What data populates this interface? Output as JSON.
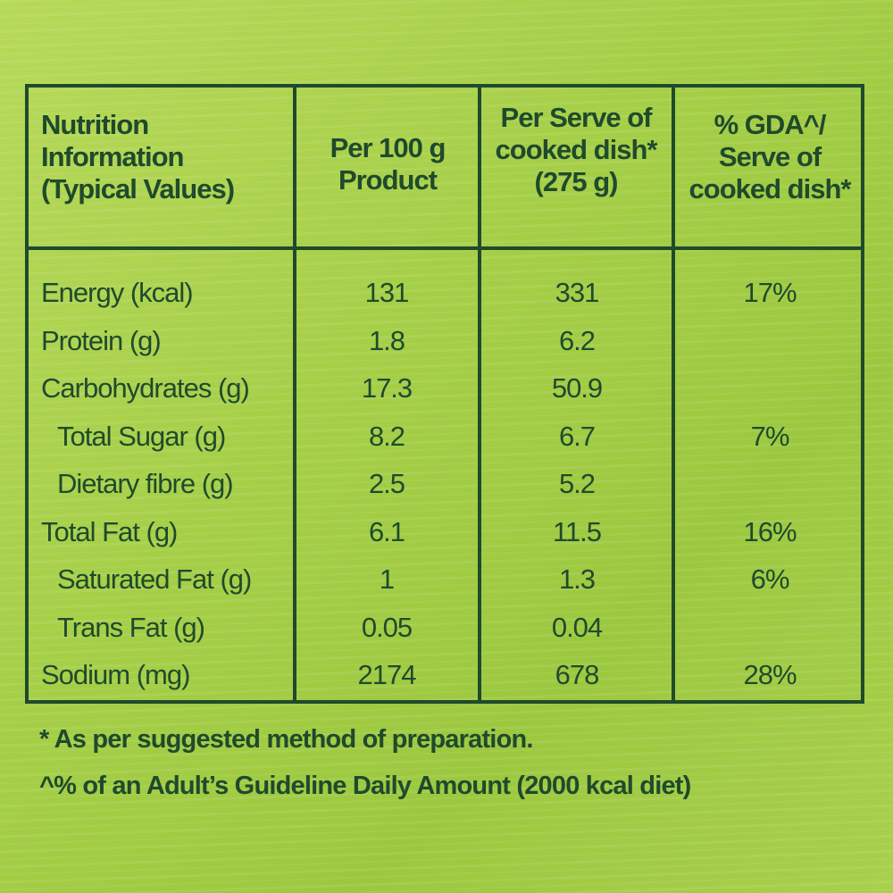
{
  "header": {
    "col0": [
      "Nutrition",
      "Information",
      "(Typical Values)"
    ],
    "col1": [
      "Per 100 g",
      "Product"
    ],
    "col2": [
      "Per Serve of",
      "cooked dish*",
      "(275 g)"
    ],
    "col3": [
      "% GDA^/",
      "Serve of",
      "cooked dish*"
    ]
  },
  "rows": [
    {
      "name": "Energy (kcal)",
      "per100": "131",
      "perServe": "331",
      "gda": "17%"
    },
    {
      "name": "Protein (g)",
      "per100": "1.8",
      "perServe": "6.2",
      "gda": ""
    },
    {
      "name": "Carbohydrates (g)",
      "per100": "17.3",
      "perServe": "50.9",
      "gda": ""
    },
    {
      "name": "Total Sugar (g)",
      "per100": "8.2",
      "perServe": "6.7",
      "gda": "7%",
      "indent": true
    },
    {
      "name": "Dietary fibre (g)",
      "per100": "2.5",
      "perServe": "5.2",
      "gda": "",
      "indent": true
    },
    {
      "name": "Total Fat (g)",
      "per100": "6.1",
      "perServe": "11.5",
      "gda": "16%"
    },
    {
      "name": "Saturated Fat (g)",
      "per100": "1",
      "perServe": "1.3",
      "gda": "6%",
      "indent": true
    },
    {
      "name": "Trans Fat (g)",
      "per100": "0.05",
      "perServe": "0.04",
      "gda": "",
      "indent": true
    },
    {
      "name": "Sodium (mg)",
      "per100": "2174",
      "perServe": "678",
      "gda": "28%"
    }
  ],
  "footnotes": [
    "* As per suggested method of preparation.",
    "^% of an Adult’s Guideline Daily Amount (2000 kcal diet)"
  ],
  "colors": {
    "ink": "#1f4a2c",
    "background": "#a6cf48"
  }
}
